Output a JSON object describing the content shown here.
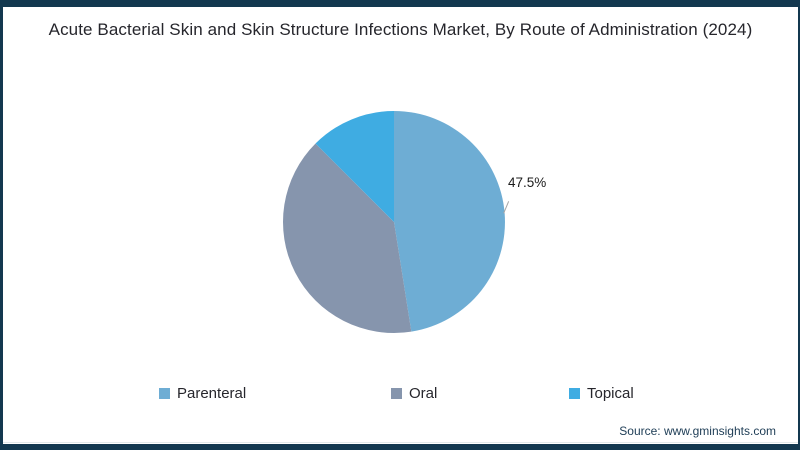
{
  "title": "Acute Bacterial Skin and Skin Structure Infections Market, By Route of Administration (2024)",
  "source": "Source: www.gminsights.com",
  "frame": {
    "border_color": "#13384f",
    "background": "#ffffff"
  },
  "chart_data": {
    "type": "pie",
    "title": "Acute Bacterial Skin and Skin Structure Infections Market, By Route of Administration (2024)",
    "start_angle_deg": 0,
    "direction": "clockwise",
    "legend_position": "bottom",
    "segments": [
      {
        "label": "Parenteral",
        "value": 47.5,
        "color": "#6eadd4",
        "data_label": "47.5%"
      },
      {
        "label": "Oral",
        "value": 40.0,
        "color": "#8695ad",
        "data_label": ""
      },
      {
        "label": "Topical",
        "value": 12.5,
        "color": "#3face2",
        "data_label": ""
      }
    ]
  }
}
